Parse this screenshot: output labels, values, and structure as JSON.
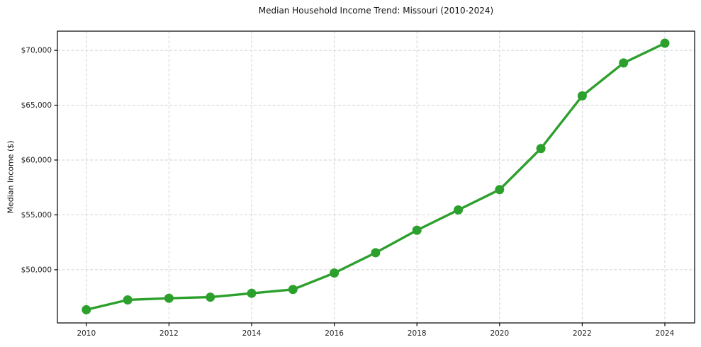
{
  "chart_data": {
    "type": "line",
    "title": "Median Household Income Trend: Missouri (2010-2024)",
    "xlabel": "",
    "ylabel": "Median Income ($)",
    "x": [
      2010,
      2011,
      2012,
      2013,
      2014,
      2015,
      2016,
      2017,
      2018,
      2019,
      2020,
      2021,
      2022,
      2023,
      2024
    ],
    "values": [
      46350,
      47250,
      47400,
      47500,
      47850,
      48200,
      49700,
      51550,
      53600,
      55450,
      57300,
      61050,
      65850,
      68850,
      70650
    ],
    "line_color": "#2ca02c",
    "xlim": [
      2009.3,
      2024.72
    ],
    "ylim": [
      45150,
      71750
    ],
    "grid": "dashed",
    "legend": "none",
    "x_ticks": [
      {
        "value": 2010,
        "label": "2010"
      },
      {
        "value": 2012,
        "label": "2012"
      },
      {
        "value": 2014,
        "label": "2014"
      },
      {
        "value": 2016,
        "label": "2016"
      },
      {
        "value": 2018,
        "label": "2018"
      },
      {
        "value": 2020,
        "label": "2020"
      },
      {
        "value": 2022,
        "label": "2022"
      },
      {
        "value": 2024,
        "label": "2024"
      }
    ],
    "y_ticks": [
      {
        "value": 50000,
        "label": "$50,000"
      },
      {
        "value": 55000,
        "label": "$55,000"
      },
      {
        "value": 60000,
        "label": "$60,000"
      },
      {
        "value": 65000,
        "label": "$65,000"
      },
      {
        "value": 70000,
        "label": "$70,000"
      }
    ]
  }
}
